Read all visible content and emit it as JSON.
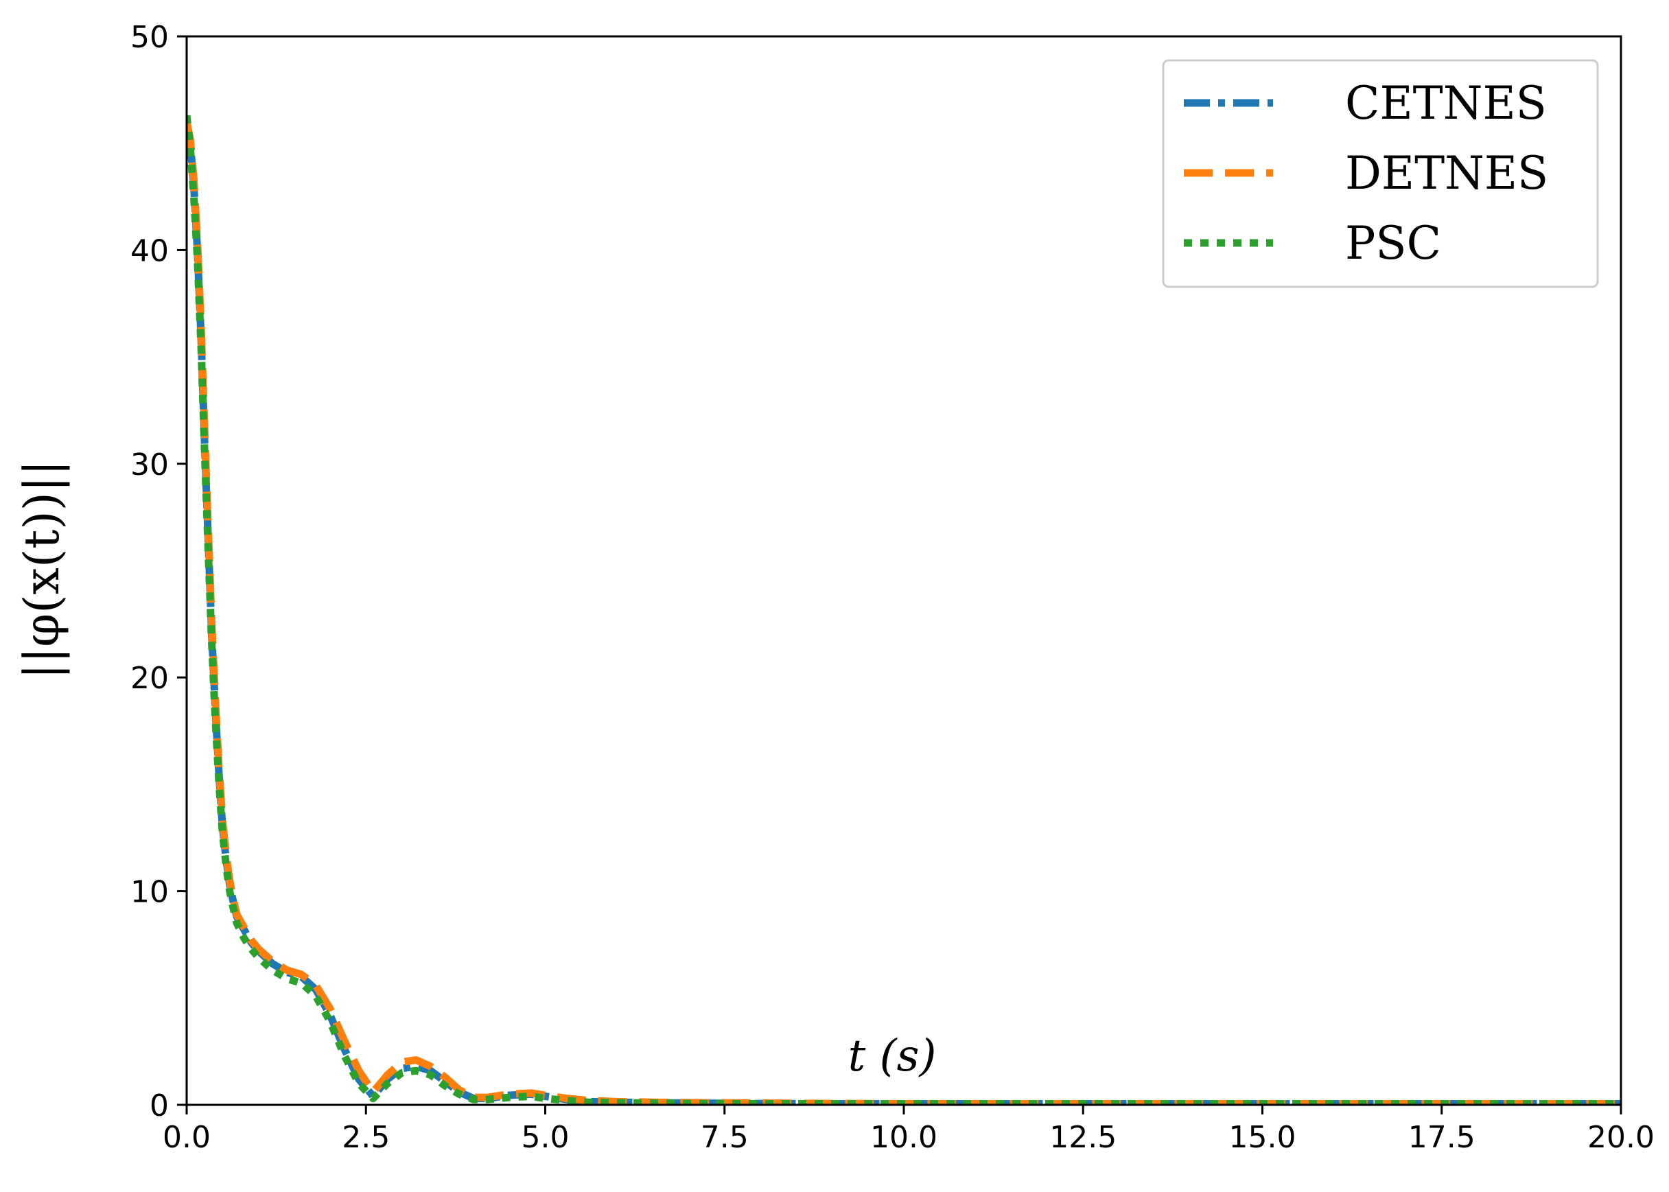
{
  "chart_data": {
    "type": "line",
    "xlabel": "t (s)",
    "ylabel": "||φ(x(t))||",
    "xlim": [
      0,
      20
    ],
    "ylim": [
      0,
      50
    ],
    "x_ticks": [
      "0.0",
      "2.5",
      "5.0",
      "7.5",
      "10.0",
      "12.5",
      "15.0",
      "17.5",
      "20.0"
    ],
    "y_ticks": [
      "0",
      "10",
      "20",
      "30",
      "40",
      "50"
    ],
    "grid": false,
    "legend_position": "top-right",
    "series": [
      {
        "name": "CETNES",
        "color": "#1f77b4",
        "style": "dashdot",
        "x": [
          0,
          0.05,
          0.1,
          0.15,
          0.2,
          0.25,
          0.3,
          0.35,
          0.4,
          0.45,
          0.5,
          0.55,
          0.6,
          0.65,
          0.7,
          0.8,
          0.9,
          1.0,
          1.1,
          1.2,
          1.4,
          1.6,
          1.8,
          2.0,
          2.2,
          2.4,
          2.6,
          2.8,
          3.0,
          3.2,
          3.4,
          3.6,
          3.8,
          4.0,
          4.2,
          4.5,
          4.8,
          5.0,
          5.3,
          5.6,
          6.0,
          6.5,
          7.0,
          8.0,
          9.0,
          10.0,
          12.0,
          14.0,
          16.0,
          18.0,
          20.0
        ],
        "y": [
          46.0,
          45.0,
          43.0,
          40.0,
          36.0,
          31.0,
          26.5,
          22.0,
          18.5,
          15.5,
          13.0,
          11.5,
          10.3,
          9.5,
          8.8,
          8.2,
          7.6,
          7.2,
          6.9,
          6.6,
          6.2,
          6.0,
          5.4,
          4.2,
          2.6,
          1.2,
          0.4,
          1.2,
          1.7,
          1.8,
          1.6,
          1.1,
          0.6,
          0.3,
          0.3,
          0.45,
          0.5,
          0.4,
          0.25,
          0.15,
          0.12,
          0.1,
          0.08,
          0.06,
          0.05,
          0.05,
          0.05,
          0.05,
          0.05,
          0.05,
          0.05
        ]
      },
      {
        "name": "DETNES",
        "color": "#ff7f0e",
        "style": "dashed",
        "x": [
          0,
          0.05,
          0.1,
          0.15,
          0.2,
          0.25,
          0.3,
          0.35,
          0.4,
          0.45,
          0.5,
          0.55,
          0.6,
          0.65,
          0.7,
          0.8,
          0.9,
          1.0,
          1.1,
          1.2,
          1.4,
          1.6,
          1.8,
          2.0,
          2.2,
          2.4,
          2.6,
          2.8,
          3.0,
          3.2,
          3.4,
          3.6,
          3.8,
          4.0,
          4.2,
          4.5,
          4.8,
          5.0,
          5.3,
          5.6,
          6.0,
          6.5,
          7.0,
          8.0,
          9.0,
          10.0,
          12.0,
          14.0,
          16.0,
          18.0,
          20.0
        ],
        "y": [
          46.0,
          45.2,
          43.3,
          40.4,
          36.5,
          31.6,
          27.0,
          22.5,
          18.9,
          15.8,
          13.3,
          11.7,
          10.5,
          9.6,
          8.9,
          8.3,
          7.7,
          7.3,
          7.0,
          6.7,
          6.3,
          6.1,
          5.6,
          4.5,
          3.0,
          1.6,
          0.6,
          1.4,
          2.0,
          2.1,
          1.8,
          1.3,
          0.7,
          0.35,
          0.35,
          0.5,
          0.55,
          0.45,
          0.3,
          0.2,
          0.15,
          0.12,
          0.1,
          0.08,
          0.06,
          0.05,
          0.05,
          0.05,
          0.05,
          0.05,
          0.05
        ]
      },
      {
        "name": "PSC",
        "color": "#2ca02c",
        "style": "dotted",
        "x": [
          0,
          0.05,
          0.1,
          0.15,
          0.2,
          0.25,
          0.3,
          0.35,
          0.4,
          0.45,
          0.5,
          0.55,
          0.6,
          0.65,
          0.7,
          0.8,
          0.9,
          1.0,
          1.1,
          1.2,
          1.4,
          1.6,
          1.8,
          2.0,
          2.2,
          2.4,
          2.6,
          2.8,
          3.0,
          3.2,
          3.4,
          3.6,
          3.8,
          4.0,
          4.2,
          4.5,
          4.8,
          5.0,
          5.3,
          5.6,
          6.0,
          6.5,
          7.0,
          8.0,
          9.0,
          10.0,
          12.0,
          14.0,
          16.0,
          18.0,
          20.0
        ],
        "y": [
          46.3,
          44.8,
          42.5,
          39.6,
          35.6,
          30.6,
          26.0,
          21.6,
          18.0,
          15.1,
          12.7,
          11.2,
          10.0,
          9.2,
          8.5,
          7.8,
          7.3,
          6.9,
          6.6,
          6.3,
          5.9,
          5.7,
          5.1,
          3.9,
          2.3,
          1.0,
          0.3,
          1.0,
          1.5,
          1.6,
          1.4,
          0.9,
          0.5,
          0.25,
          0.25,
          0.35,
          0.4,
          0.3,
          0.2,
          0.12,
          0.1,
          0.08,
          0.06,
          0.05,
          0.05,
          0.05,
          0.05,
          0.05,
          0.05,
          0.05,
          0.05
        ]
      }
    ]
  }
}
